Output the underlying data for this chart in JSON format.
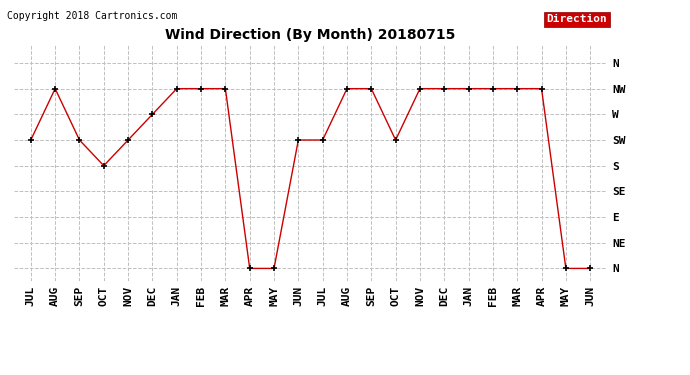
{
  "title": "Wind Direction (By Month) 20180715",
  "copyright": "Copyright 2018 Cartronics.com",
  "legend_label": "Direction",
  "legend_bg": "#cc0000",
  "legend_text_color": "#ffffff",
  "line_color": "#cc0000",
  "marker_color": "#000000",
  "grid_color": "#c0c0c0",
  "bg_color": "#ffffff",
  "x_labels": [
    "JUL",
    "AUG",
    "SEP",
    "OCT",
    "NOV",
    "DEC",
    "JAN",
    "FEB",
    "MAR",
    "APR",
    "MAY",
    "JUN",
    "JUL",
    "AUG",
    "SEP",
    "OCT",
    "NOV",
    "DEC",
    "JAN",
    "FEB",
    "MAR",
    "APR",
    "MAY",
    "JUN"
  ],
  "ytick_positions": [
    0,
    1,
    2,
    3,
    4,
    5,
    6,
    7,
    8
  ],
  "ytick_labels": [
    "N",
    "NE",
    "E",
    "SE",
    "S",
    "SW",
    "W",
    "NW",
    "N"
  ],
  "data_values": [
    5,
    7,
    5,
    4,
    5,
    6,
    7,
    7,
    7,
    0,
    0,
    5,
    5,
    7,
    7,
    5,
    7,
    7,
    7,
    7,
    7,
    7,
    0,
    0
  ],
  "title_fontsize": 10,
  "copyright_fontsize": 7,
  "tick_fontsize": 8
}
